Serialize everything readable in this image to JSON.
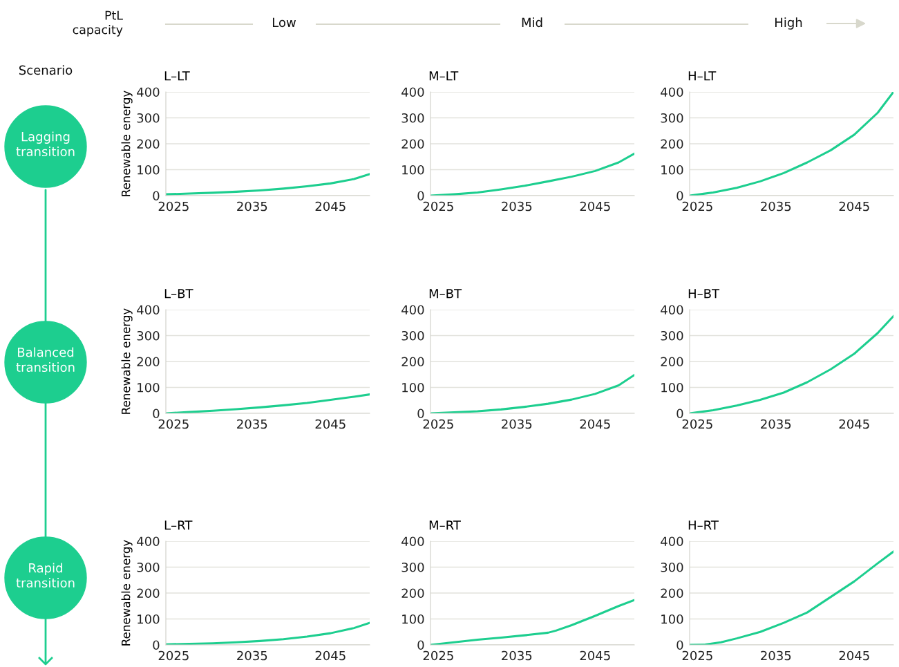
{
  "chart_data": [
    {
      "type": "line",
      "title": "L–LT",
      "ylabel": "Renewable energy",
      "x": [
        2024,
        2027,
        2030,
        2033,
        2036,
        2039,
        2042,
        2045,
        2048,
        2050
      ],
      "series": [
        {
          "color": "#1dce8f",
          "values": [
            5,
            8,
            11,
            15,
            20,
            27,
            36,
            47,
            64,
            83
          ]
        }
      ],
      "xlim": [
        2024,
        2050
      ],
      "ylim": [
        0,
        400
      ],
      "xticks": [
        2025,
        2035,
        2045
      ],
      "yticks": [
        0,
        100,
        200,
        300,
        400
      ],
      "grid": "y"
    },
    {
      "type": "line",
      "title": "M–LT",
      "x": [
        2024,
        2027,
        2030,
        2033,
        2036,
        2039,
        2042,
        2045,
        2048,
        2050
      ],
      "series": [
        {
          "color": "#1dce8f",
          "values": [
            0,
            5,
            12,
            24,
            38,
            55,
            73,
            95,
            128,
            162
          ]
        }
      ],
      "xlim": [
        2024,
        2050
      ],
      "ylim": [
        0,
        400
      ],
      "xticks": [
        2025,
        2035,
        2045
      ],
      "yticks": [
        0,
        100,
        200,
        300,
        400
      ],
      "grid": "y"
    },
    {
      "type": "line",
      "title": "H–LT",
      "x": [
        2024,
        2027,
        2030,
        2033,
        2036,
        2039,
        2042,
        2045,
        2048,
        2050
      ],
      "series": [
        {
          "color": "#1dce8f",
          "values": [
            0,
            12,
            30,
            55,
            87,
            128,
            175,
            235,
            320,
            400
          ]
        }
      ],
      "xlim": [
        2024,
        2050
      ],
      "ylim": [
        0,
        400
      ],
      "xticks": [
        2025,
        2035,
        2045
      ],
      "yticks": [
        0,
        100,
        200,
        300,
        400
      ],
      "grid": "y"
    },
    {
      "type": "line",
      "title": "L–BT",
      "ylabel": "Renewable energy",
      "x": [
        2024,
        2027,
        2030,
        2033,
        2036,
        2039,
        2042,
        2045,
        2048,
        2050
      ],
      "series": [
        {
          "color": "#1dce8f",
          "values": [
            0,
            5,
            10,
            16,
            23,
            31,
            40,
            52,
            64,
            73
          ]
        }
      ],
      "xlim": [
        2024,
        2050
      ],
      "ylim": [
        0,
        400
      ],
      "xticks": [
        2025,
        2035,
        2045
      ],
      "yticks": [
        0,
        100,
        200,
        300,
        400
      ],
      "grid": "y"
    },
    {
      "type": "line",
      "title": "M–BT",
      "x": [
        2024,
        2027,
        2030,
        2033,
        2036,
        2039,
        2042,
        2045,
        2048,
        2050
      ],
      "series": [
        {
          "color": "#1dce8f",
          "values": [
            0,
            4,
            8,
            15,
            25,
            37,
            53,
            75,
            108,
            148
          ]
        }
      ],
      "xlim": [
        2024,
        2050
      ],
      "ylim": [
        0,
        400
      ],
      "xticks": [
        2025,
        2035,
        2045
      ],
      "yticks": [
        0,
        100,
        200,
        300,
        400
      ],
      "grid": "y"
    },
    {
      "type": "line",
      "title": "H–BT",
      "x": [
        2024,
        2027,
        2030,
        2033,
        2036,
        2039,
        2042,
        2045,
        2048,
        2050
      ],
      "series": [
        {
          "color": "#1dce8f",
          "values": [
            0,
            12,
            30,
            52,
            80,
            120,
            170,
            230,
            310,
            375
          ]
        }
      ],
      "xlim": [
        2024,
        2050
      ],
      "ylim": [
        0,
        400
      ],
      "xticks": [
        2025,
        2035,
        2045
      ],
      "yticks": [
        0,
        100,
        200,
        300,
        400
      ],
      "grid": "y"
    },
    {
      "type": "line",
      "title": "L–RT",
      "ylabel": "Renewable energy",
      "x": [
        2024,
        2027,
        2030,
        2033,
        2036,
        2039,
        2042,
        2045,
        2048,
        2050
      ],
      "series": [
        {
          "color": "#1dce8f",
          "values": [
            2,
            4,
            6,
            10,
            15,
            22,
            32,
            45,
            65,
            85
          ]
        }
      ],
      "xlim": [
        2024,
        2050
      ],
      "ylim": [
        0,
        400
      ],
      "xticks": [
        2025,
        2035,
        2045
      ],
      "yticks": [
        0,
        100,
        200,
        300,
        400
      ],
      "grid": "y"
    },
    {
      "type": "line",
      "title": "M–RT",
      "x": [
        2024,
        2027,
        2030,
        2033,
        2036,
        2039,
        2040,
        2042,
        2045,
        2048,
        2050
      ],
      "series": [
        {
          "color": "#1dce8f",
          "values": [
            0,
            10,
            20,
            28,
            37,
            47,
            55,
            76,
            112,
            150,
            173
          ]
        }
      ],
      "xlim": [
        2024,
        2050
      ],
      "ylim": [
        0,
        400
      ],
      "xticks": [
        2025,
        2035,
        2045
      ],
      "yticks": [
        0,
        100,
        200,
        300,
        400
      ],
      "grid": "y"
    },
    {
      "type": "line",
      "title": "H–RT",
      "x": [
        2024,
        2026,
        2028,
        2030,
        2033,
        2036,
        2039,
        2042,
        2045,
        2048,
        2050
      ],
      "series": [
        {
          "color": "#1dce8f",
          "values": [
            0,
            1,
            10,
            25,
            50,
            85,
            125,
            185,
            245,
            315,
            360
          ]
        }
      ],
      "xlim": [
        2024,
        2050
      ],
      "ylim": [
        0,
        400
      ],
      "xticks": [
        2025,
        2035,
        2045
      ],
      "yticks": [
        0,
        100,
        200,
        300,
        400
      ],
      "grid": "y"
    },
    {
      "type": "other",
      "annotations": [
        "PtL\ncapacity",
        "Low",
        "Mid",
        "High",
        "Scenario",
        "Lagging\ntransition",
        "Balanced\ntransition",
        "Rapid\ntransition"
      ]
    }
  ]
}
